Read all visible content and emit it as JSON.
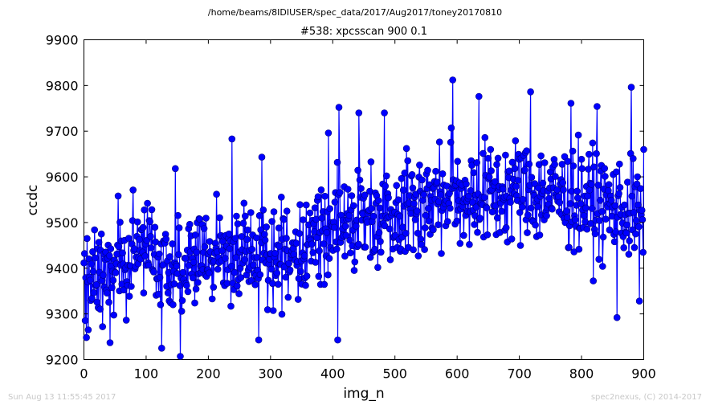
{
  "header": {
    "path": "/home/beams/8IDIUSER/spec_data/2017/Aug2017/toney20170810"
  },
  "footer": {
    "timestamp": "Sun Aug 13 11:55:45 2017",
    "credit": "spec2nexus, (C) 2014-2017"
  },
  "chart_data": {
    "type": "line",
    "title": "#538: xpcsscan 900 0.1",
    "xlabel": "img_n",
    "ylabel": "ccdc",
    "xlim": [
      0,
      900
    ],
    "ylim": [
      9200,
      9900
    ],
    "xticks": [
      "0",
      "100",
      "200",
      "300",
      "400",
      "500",
      "600",
      "700",
      "800",
      "900"
    ],
    "yticks": [
      "9200",
      "9300",
      "9400",
      "9500",
      "9600",
      "9700",
      "9800",
      "9900"
    ],
    "grid": false,
    "marker": "circle",
    "color": "#0000ff",
    "n_points": 900,
    "trend": {
      "x": [
        0,
        100,
        200,
        300,
        350,
        400,
        450,
        500,
        550,
        600,
        650,
        700,
        750,
        800,
        850,
        900
      ],
      "y": [
        9410,
        9420,
        9420,
        9430,
        9450,
        9500,
        9510,
        9530,
        9545,
        9560,
        9560,
        9570,
        9560,
        9550,
        9530,
        9520
      ]
    },
    "spread": 75,
    "notable_points": [
      {
        "x": 7,
        "y": 9265
      },
      {
        "x": 30,
        "y": 9272
      },
      {
        "x": 42,
        "y": 9237
      },
      {
        "x": 125,
        "y": 9225
      },
      {
        "x": 147,
        "y": 9618
      },
      {
        "x": 155,
        "y": 9207
      },
      {
        "x": 238,
        "y": 9683
      },
      {
        "x": 286,
        "y": 9643
      },
      {
        "x": 281,
        "y": 9243
      },
      {
        "x": 393,
        "y": 9696
      },
      {
        "x": 410,
        "y": 9752
      },
      {
        "x": 408,
        "y": 9243
      },
      {
        "x": 442,
        "y": 9740
      },
      {
        "x": 483,
        "y": 9740
      },
      {
        "x": 593,
        "y": 9812
      },
      {
        "x": 635,
        "y": 9776
      },
      {
        "x": 718,
        "y": 9786
      },
      {
        "x": 783,
        "y": 9761
      },
      {
        "x": 825,
        "y": 9754
      },
      {
        "x": 857,
        "y": 9292
      },
      {
        "x": 880,
        "y": 9796
      },
      {
        "x": 893,
        "y": 9328
      }
    ]
  }
}
